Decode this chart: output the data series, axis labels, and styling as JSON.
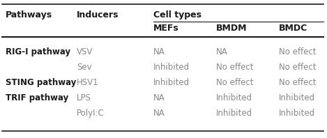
{
  "col_header_row1": [
    "Pathways",
    "Inducers",
    "Cell types"
  ],
  "col_header_row2": [
    "MEFs",
    "BMDM",
    "BMDC"
  ],
  "rows": [
    [
      "RIG-I pathway",
      "VSV",
      "NA",
      "NA",
      "No effect"
    ],
    [
      "",
      "Sev",
      "Inhibited",
      "No effect",
      "No effect"
    ],
    [
      "STING pathway",
      "HSV1",
      "Inhibited",
      "No effect",
      "No effect"
    ],
    [
      "TRIF pathway",
      "LPS",
      "NA",
      "Inhibited",
      "Inhibited"
    ],
    [
      "",
      "PolyI:C",
      "NA",
      "Inhibited",
      "Inhibited"
    ]
  ],
  "col_xs_fig": [
    8,
    110,
    220,
    310,
    400
  ],
  "bg_color": "#ffffff",
  "text_color": "#1a1a1a",
  "gray_color": "#888888",
  "header_fontsize": 9.0,
  "body_fontsize": 8.5,
  "fig_width": 4.69,
  "fig_height": 1.98,
  "dpi": 100
}
